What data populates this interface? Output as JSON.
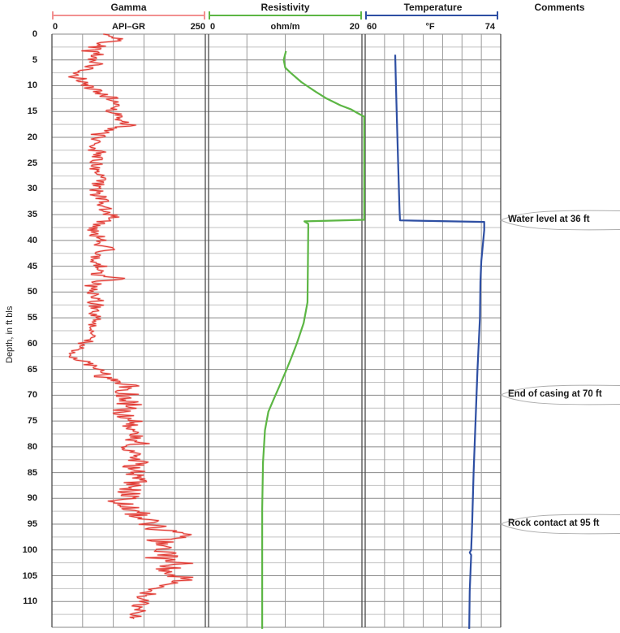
{
  "header": {
    "comments_label": "Comments"
  },
  "comments": [
    {
      "text": "Water level at 36 ft",
      "depth": 36
    },
    {
      "text": "End of casing at 70 ft",
      "depth": 70
    },
    {
      "text": "Rock contact at 95 ft",
      "depth": 95
    }
  ],
  "chart_data": {
    "type": "line",
    "subtype": "borehole-geophysical-log",
    "grid": true,
    "depth_axis": {
      "label": "Depth, in ft bls",
      "min": 0,
      "max": 115,
      "label_interval": 5,
      "minor_interval": 2.5,
      "tick_labels": [
        0,
        5,
        10,
        15,
        20,
        25,
        30,
        35,
        40,
        45,
        50,
        55,
        60,
        65,
        70,
        75,
        80,
        85,
        90,
        95,
        100,
        105,
        110
      ]
    },
    "tracks": [
      {
        "id": "gamma",
        "title": "Gamma",
        "unit": "API–GR",
        "xmin": 0,
        "xmax": 250,
        "divisions": 5,
        "color": "#e0362f",
        "halo_color": "rgba(238,110,104,0.45)",
        "header_color": "#f29090",
        "style": "noisy",
        "trend": [
          [
            0,
            85
          ],
          [
            0.8,
            100
          ],
          [
            1.2,
            118
          ],
          [
            1.6,
            80
          ],
          [
            2,
            92
          ],
          [
            2.6,
            70
          ],
          [
            3.2,
            72
          ],
          [
            4,
            74
          ],
          [
            4.6,
            66
          ],
          [
            5.2,
            76
          ],
          [
            6,
            70
          ],
          [
            6.6,
            55
          ],
          [
            7.2,
            40
          ],
          [
            8,
            32
          ],
          [
            8.6,
            45
          ],
          [
            9.2,
            52
          ],
          [
            10,
            56
          ],
          [
            10.8,
            68
          ],
          [
            11.6,
            84
          ],
          [
            12.4,
            95
          ],
          [
            13.2,
            104
          ],
          [
            14,
            108
          ],
          [
            14.8,
            98
          ],
          [
            15.6,
            104
          ],
          [
            16.4,
            108
          ],
          [
            17.2,
            118
          ],
          [
            17.6,
            136
          ],
          [
            18,
            100
          ],
          [
            18.8,
            88
          ],
          [
            19.6,
            80
          ],
          [
            20.4,
            74
          ],
          [
            21.2,
            71
          ],
          [
            22,
            69
          ],
          [
            23,
            72
          ],
          [
            24,
            76
          ],
          [
            25,
            72
          ],
          [
            26,
            67
          ],
          [
            27,
            71
          ],
          [
            28,
            79
          ],
          [
            29,
            74
          ],
          [
            30,
            71
          ],
          [
            31,
            77
          ],
          [
            32,
            84
          ],
          [
            33,
            79
          ],
          [
            34,
            88
          ],
          [
            35,
            96
          ],
          [
            35.5,
            110
          ],
          [
            36,
            86
          ],
          [
            37,
            76
          ],
          [
            38,
            70
          ],
          [
            39,
            72
          ],
          [
            40,
            76
          ],
          [
            41,
            82
          ],
          [
            41.5,
            118
          ],
          [
            42,
            74
          ],
          [
            43,
            68
          ],
          [
            44,
            64
          ],
          [
            45,
            70
          ],
          [
            46,
            72
          ],
          [
            47,
            78
          ],
          [
            47.5,
            122
          ],
          [
            48,
            72
          ],
          [
            49,
            64
          ],
          [
            50,
            67
          ],
          [
            51,
            72
          ],
          [
            52,
            76
          ],
          [
            53,
            71
          ],
          [
            54,
            67
          ],
          [
            55,
            70
          ],
          [
            56,
            72
          ],
          [
            57,
            67
          ],
          [
            58,
            64
          ],
          [
            59,
            61
          ],
          [
            60,
            57
          ],
          [
            61,
            48
          ],
          [
            61.8,
            30
          ],
          [
            62.3,
            26
          ],
          [
            63,
            44
          ],
          [
            64,
            60
          ],
          [
            65,
            74
          ],
          [
            66,
            84
          ],
          [
            67,
            94
          ],
          [
            67.6,
            112
          ],
          [
            68.2,
            128
          ],
          [
            69,
            108
          ],
          [
            70,
            114
          ],
          [
            71,
            120
          ],
          [
            72,
            117
          ],
          [
            73,
            114
          ],
          [
            74,
            118
          ],
          [
            75,
            122
          ],
          [
            76,
            125
          ],
          [
            77,
            128
          ],
          [
            78,
            131
          ],
          [
            79,
            127
          ],
          [
            80,
            130
          ],
          [
            81,
            133
          ],
          [
            82,
            135
          ],
          [
            83,
            138
          ],
          [
            84,
            134
          ],
          [
            85,
            138
          ],
          [
            86,
            141
          ],
          [
            87,
            134
          ],
          [
            88,
            128
          ],
          [
            89,
            123
          ],
          [
            90,
            127
          ],
          [
            90.5,
            90
          ],
          [
            91,
            118
          ],
          [
            92,
            134
          ],
          [
            93,
            140
          ],
          [
            94,
            150
          ],
          [
            95,
            161
          ],
          [
            96,
            172
          ],
          [
            96.8,
            196
          ],
          [
            97.3,
            226
          ],
          [
            98,
            176
          ],
          [
            99,
            178
          ],
          [
            100,
            181
          ],
          [
            101,
            186
          ],
          [
            102,
            196
          ],
          [
            102.5,
            218
          ],
          [
            103,
            186
          ],
          [
            104,
            191
          ],
          [
            105,
            200
          ],
          [
            105.6,
            238
          ],
          [
            106,
            192
          ],
          [
            107,
            181
          ],
          [
            108,
            166
          ],
          [
            109,
            150
          ],
          [
            110,
            146
          ],
          [
            111,
            141
          ],
          [
            112,
            139
          ],
          [
            113.5,
            136
          ]
        ],
        "noise_amplitude": [
          [
            0,
            14
          ],
          [
            10,
            13
          ],
          [
            20,
            11
          ],
          [
            30,
            12
          ],
          [
            40,
            13
          ],
          [
            50,
            12
          ],
          [
            60,
            10
          ],
          [
            62,
            8
          ],
          [
            65,
            12
          ],
          [
            70,
            16
          ],
          [
            80,
            18
          ],
          [
            85,
            20
          ],
          [
            90,
            20
          ],
          [
            95,
            22
          ],
          [
            100,
            22
          ],
          [
            105,
            22
          ],
          [
            110,
            16
          ],
          [
            113.5,
            10
          ]
        ],
        "depth_start": 0,
        "depth_end": 113.5
      },
      {
        "id": "resistivity",
        "title": "Resistivity",
        "unit": "ohm/m",
        "xmin": 0,
        "xmax": 20,
        "divisions": 4,
        "color": "#5cb644",
        "header_color": "#5cb644",
        "style": "smooth",
        "points": [
          [
            3.3,
            10.1
          ],
          [
            5,
            9.8
          ],
          [
            6.5,
            10.0
          ],
          [
            7.5,
            10.7
          ],
          [
            9.3,
            12.1
          ],
          [
            11.2,
            14.0
          ],
          [
            12.5,
            15.4
          ],
          [
            13.8,
            17.2
          ],
          [
            14.6,
            18.6
          ],
          [
            15.2,
            19.3
          ],
          [
            16.0,
            20.3
          ],
          [
            36.0,
            20.3
          ],
          [
            36.3,
            12.5
          ],
          [
            36.8,
            13.0
          ],
          [
            45,
            12.95
          ],
          [
            52,
            12.9
          ],
          [
            56,
            12.4
          ],
          [
            60,
            11.5
          ],
          [
            62.7,
            10.8
          ],
          [
            65.3,
            10.1
          ],
          [
            68.4,
            9.2
          ],
          [
            71.1,
            8.4
          ],
          [
            73.2,
            7.8
          ],
          [
            76.8,
            7.35
          ],
          [
            83,
            7.1
          ],
          [
            92,
            7.0
          ],
          [
            105,
            7.0
          ],
          [
            115.3,
            7.0
          ]
        ]
      },
      {
        "id": "temperature",
        "title": "Temperature",
        "unit": "°F",
        "xmin": 60,
        "xmax": 74,
        "divisions": 7,
        "color": "#2e4fa3",
        "header_color": "#2e4fa3",
        "style": "smooth",
        "points": [
          [
            4,
            63.1
          ],
          [
            8,
            63.15
          ],
          [
            15,
            63.25
          ],
          [
            25,
            63.4
          ],
          [
            34,
            63.55
          ],
          [
            36.1,
            63.6
          ],
          [
            36.4,
            72.3
          ],
          [
            38,
            72.3
          ],
          [
            40,
            72.2
          ],
          [
            44,
            72.0
          ],
          [
            48,
            71.9
          ],
          [
            55,
            71.85
          ],
          [
            65,
            71.6
          ],
          [
            75,
            71.4
          ],
          [
            85,
            71.2
          ],
          [
            95,
            71.05
          ],
          [
            100,
            70.95
          ],
          [
            100.5,
            70.8
          ],
          [
            101,
            70.95
          ],
          [
            108,
            70.8
          ],
          [
            115.3,
            70.75
          ]
        ]
      }
    ],
    "comments": [
      {
        "text": "Water level at 36 ft",
        "depth": 36
      },
      {
        "text": "End of casing at 70 ft",
        "depth": 70
      },
      {
        "text": "Rock contact at 95 ft",
        "depth": 95
      }
    ],
    "grid_colors": {
      "major": "#8a8a8a",
      "minor": "#c2c2c2",
      "boundary": "#4a4a4a",
      "internal": "#9a9a9a"
    }
  }
}
